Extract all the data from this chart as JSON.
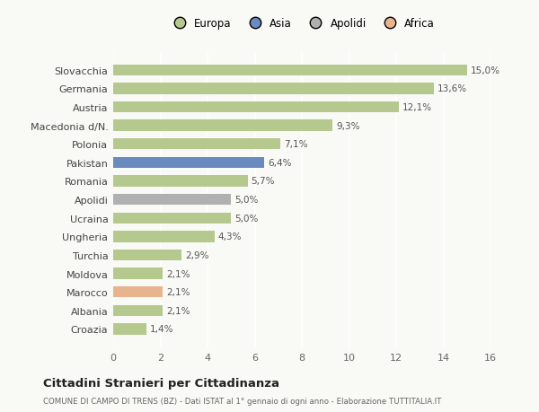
{
  "categories": [
    "Slovacchia",
    "Germania",
    "Austria",
    "Macedonia d/N.",
    "Polonia",
    "Pakistan",
    "Romania",
    "Apolidi",
    "Ucraina",
    "Ungheria",
    "Turchia",
    "Moldova",
    "Marocco",
    "Albania",
    "Croazia"
  ],
  "values": [
    15.0,
    13.6,
    12.1,
    9.3,
    7.1,
    6.4,
    5.7,
    5.0,
    5.0,
    4.3,
    2.9,
    2.1,
    2.1,
    2.1,
    1.4
  ],
  "labels": [
    "15,0%",
    "13,6%",
    "12,1%",
    "9,3%",
    "7,1%",
    "6,4%",
    "5,7%",
    "5,0%",
    "5,0%",
    "4,3%",
    "2,9%",
    "2,1%",
    "2,1%",
    "2,1%",
    "1,4%"
  ],
  "colors": [
    "#b5c98e",
    "#b5c98e",
    "#b5c98e",
    "#b5c98e",
    "#b5c98e",
    "#6a8bbf",
    "#b5c98e",
    "#b0b0b0",
    "#b5c98e",
    "#b5c98e",
    "#b5c98e",
    "#b5c98e",
    "#e8b48e",
    "#b5c98e",
    "#b5c98e"
  ],
  "legend": [
    {
      "label": "Europa",
      "color": "#b5c98e"
    },
    {
      "label": "Asia",
      "color": "#6a8bbf"
    },
    {
      "label": "Apolidi",
      "color": "#b0b0b0"
    },
    {
      "label": "Africa",
      "color": "#e8b48e"
    }
  ],
  "xlim": [
    0,
    16
  ],
  "xticks": [
    0,
    2,
    4,
    6,
    8,
    10,
    12,
    14,
    16
  ],
  "title": "Cittadini Stranieri per Cittadinanza",
  "subtitle": "COMUNE DI CAMPO DI TRENS (BZ) - Dati ISTAT al 1° gennaio di ogni anno - Elaborazione TUTTITALIA.IT",
  "background_color": "#f9f9f6",
  "grid_color": "#e8e8e8",
  "bar_height": 0.6,
  "label_fontsize": 7.5,
  "ytick_fontsize": 8.0,
  "xtick_fontsize": 8.0
}
